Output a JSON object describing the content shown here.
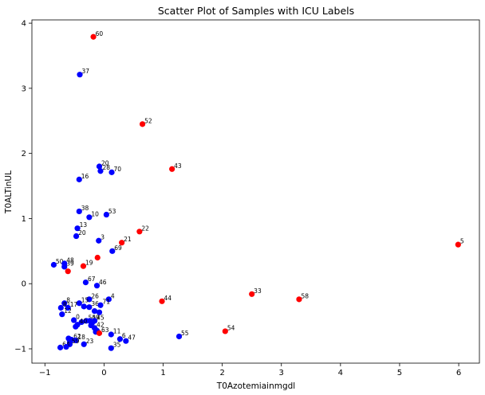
{
  "chart_data": {
    "type": "scatter",
    "title": "Scatter Plot of Samples with ICU Labels",
    "xlabel": "T0Azotemiainmgdl",
    "ylabel": "T0ALTinUL",
    "xlim": [
      -1.22,
      6.35
    ],
    "ylim": [
      -1.22,
      4.05
    ],
    "xticks": [
      -1,
      0,
      1,
      2,
      3,
      4,
      5,
      6
    ],
    "yticks": [
      -1,
      0,
      1,
      2,
      3,
      4
    ],
    "grid": false,
    "colors": {
      "icu": "#ff0000",
      "non_icu": "#0000ff"
    },
    "points": [
      {
        "label": "60",
        "x": -0.18,
        "y": 3.79,
        "icu": true
      },
      {
        "label": "37",
        "x": -0.41,
        "y": 3.21,
        "icu": false
      },
      {
        "label": "52",
        "x": 0.65,
        "y": 2.45,
        "icu": true
      },
      {
        "label": "20",
        "x": -0.08,
        "y": 1.8,
        "icu": false
      },
      {
        "label": "28",
        "x": -0.06,
        "y": 1.73,
        "icu": false
      },
      {
        "label": "70",
        "x": 0.13,
        "y": 1.71,
        "icu": false
      },
      {
        "label": "43",
        "x": 1.15,
        "y": 1.76,
        "icu": true
      },
      {
        "label": "16",
        "x": -0.42,
        "y": 1.6,
        "icu": false
      },
      {
        "label": "38",
        "x": -0.42,
        "y": 1.11,
        "icu": false
      },
      {
        "label": "10",
        "x": -0.25,
        "y": 1.02,
        "icu": false
      },
      {
        "label": "53",
        "x": 0.04,
        "y": 1.06,
        "icu": false
      },
      {
        "label": "13",
        "x": -0.45,
        "y": 0.85,
        "icu": false
      },
      {
        "label": "22",
        "x": 0.6,
        "y": 0.8,
        "icu": true
      },
      {
        "label": "20",
        "x": -0.47,
        "y": 0.73,
        "icu": false
      },
      {
        "label": "3",
        "x": -0.09,
        "y": 0.66,
        "icu": false
      },
      {
        "label": "21",
        "x": 0.3,
        "y": 0.63,
        "icu": true
      },
      {
        "label": "69",
        "x": 0.14,
        "y": 0.5,
        "icu": false
      },
      {
        "label": "5",
        "x": 5.99,
        "y": 0.6,
        "icu": true
      },
      {
        "label": "",
        "x": -0.11,
        "y": 0.4,
        "icu": true
      },
      {
        "label": "50",
        "x": -0.85,
        "y": 0.29,
        "icu": false
      },
      {
        "label": "48",
        "x": -0.67,
        "y": 0.31,
        "icu": false
      },
      {
        "label": "19",
        "x": -0.35,
        "y": 0.27,
        "icu": true
      },
      {
        "label": "39",
        "x": -0.67,
        "y": 0.26,
        "icu": false
      },
      {
        "label": "",
        "x": -0.61,
        "y": 0.19,
        "icu": true
      },
      {
        "label": "67",
        "x": -0.31,
        "y": 0.02,
        "icu": false
      },
      {
        "label": "46",
        "x": -0.12,
        "y": -0.03,
        "icu": false
      },
      {
        "label": "33",
        "x": 2.5,
        "y": -0.16,
        "icu": true
      },
      {
        "label": "58",
        "x": 3.3,
        "y": -0.24,
        "icu": true
      },
      {
        "label": "44",
        "x": 0.98,
        "y": -0.27,
        "icu": true
      },
      {
        "label": "4",
        "x": 0.08,
        "y": -0.24,
        "icu": false
      },
      {
        "label": "26",
        "x": -0.25,
        "y": -0.24,
        "icu": false
      },
      {
        "label": "15",
        "x": -0.42,
        "y": -0.3,
        "icu": false
      },
      {
        "label": "8",
        "x": -0.67,
        "y": -0.3,
        "icu": false
      },
      {
        "label": "36",
        "x": -0.25,
        "y": -0.36,
        "icu": false
      },
      {
        "label": "71",
        "x": -0.06,
        "y": -0.33,
        "icu": false
      },
      {
        "label": "81",
        "x": -0.73,
        "y": -0.37,
        "icu": false
      },
      {
        "label": "17",
        "x": -0.61,
        "y": -0.37,
        "icu": false
      },
      {
        "label": "",
        "x": -0.34,
        "y": -0.35,
        "icu": false
      },
      {
        "label": "12",
        "x": -0.71,
        "y": -0.47,
        "icu": false
      },
      {
        "label": "",
        "x": -0.16,
        "y": -0.42,
        "icu": false
      },
      {
        "label": "",
        "x": -0.08,
        "y": -0.44,
        "icu": false
      },
      {
        "label": "0",
        "x": -0.51,
        "y": -0.56,
        "icu": false
      },
      {
        "label": "55",
        "x": -0.3,
        "y": -0.57,
        "icu": false
      },
      {
        "label": "49",
        "x": -0.24,
        "y": -0.57,
        "icu": false
      },
      {
        "label": "45",
        "x": -0.16,
        "y": -0.57,
        "icu": false
      },
      {
        "label": "",
        "x": -0.38,
        "y": -0.59,
        "icu": false
      },
      {
        "label": "",
        "x": -0.2,
        "y": -0.6,
        "icu": false
      },
      {
        "label": "40",
        "x": -0.45,
        "y": -0.63,
        "icu": false
      },
      {
        "label": "",
        "x": -0.48,
        "y": -0.66,
        "icu": false
      },
      {
        "label": "",
        "x": -0.22,
        "y": -0.64,
        "icu": false
      },
      {
        "label": "42",
        "x": -0.16,
        "y": -0.68,
        "icu": false
      },
      {
        "label": "",
        "x": -0.12,
        "y": -0.72,
        "icu": false
      },
      {
        "label": "",
        "x": -0.14,
        "y": -0.74,
        "icu": false
      },
      {
        "label": "63",
        "x": -0.08,
        "y": -0.76,
        "icu": true
      },
      {
        "label": "11",
        "x": 0.12,
        "y": -0.78,
        "icu": false
      },
      {
        "label": "55",
        "x": 1.27,
        "y": -0.81,
        "icu": false
      },
      {
        "label": "54",
        "x": 2.05,
        "y": -0.73,
        "icu": true
      },
      {
        "label": "6",
        "x": 0.27,
        "y": -0.85,
        "icu": false
      },
      {
        "label": "47",
        "x": 0.37,
        "y": -0.88,
        "icu": false
      },
      {
        "label": "",
        "x": -0.6,
        "y": -0.84,
        "icu": false
      },
      {
        "label": "62",
        "x": -0.55,
        "y": -0.86,
        "icu": false
      },
      {
        "label": "18",
        "x": -0.48,
        "y": -0.87,
        "icu": false
      },
      {
        "label": "",
        "x": -0.58,
        "y": -0.9,
        "icu": false
      },
      {
        "label": "59",
        "x": -0.58,
        "y": -0.93,
        "icu": false
      },
      {
        "label": "23",
        "x": -0.34,
        "y": -0.93,
        "icu": false
      },
      {
        "label": "64",
        "x": -0.74,
        "y": -0.98,
        "icu": false
      },
      {
        "label": "",
        "x": -0.64,
        "y": -0.97,
        "icu": false
      },
      {
        "label": "35",
        "x": 0.12,
        "y": -0.99,
        "icu": false
      }
    ]
  }
}
